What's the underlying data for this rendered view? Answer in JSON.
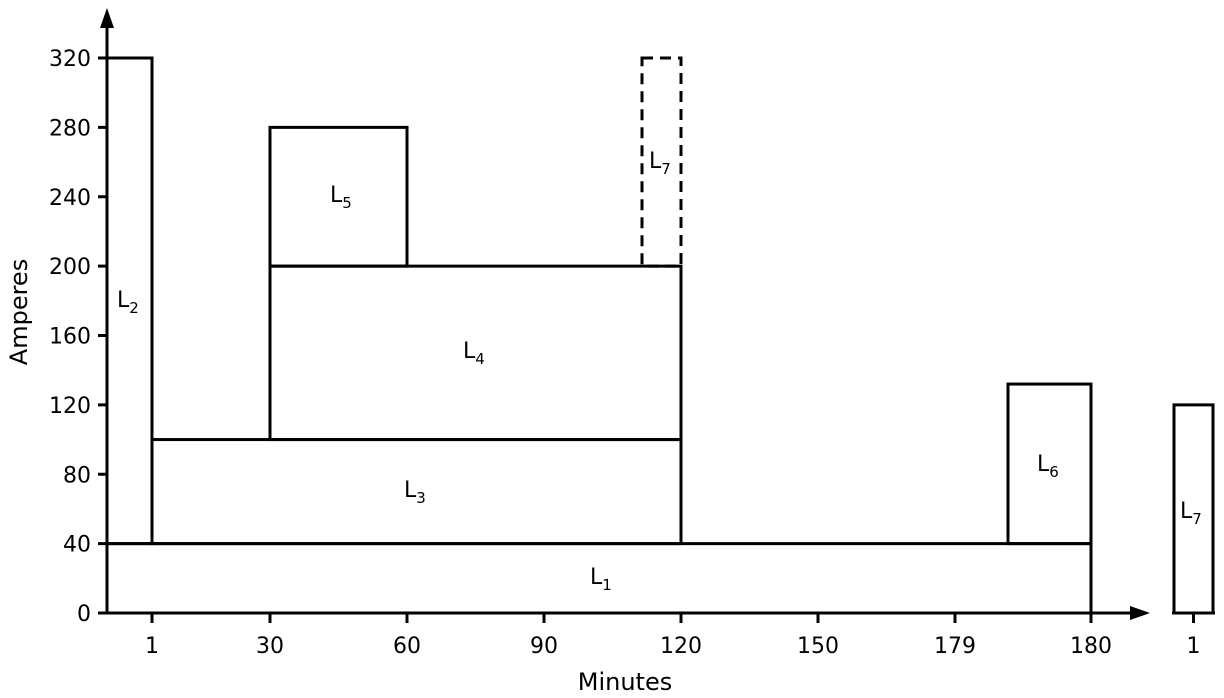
{
  "chart_data": {
    "type": "bar",
    "title": "",
    "xlabel": "Minutes",
    "ylabel": "Amperes",
    "ylim": [
      0,
      320
    ],
    "y_ticks": [
      "0",
      "40",
      "80",
      "120",
      "160",
      "200",
      "240",
      "280",
      "320"
    ],
    "x_ticks": [
      "1",
      "30",
      "60",
      "90",
      "120",
      "150",
      "179",
      "180"
    ],
    "extra_x_tick": "1",
    "grid": false,
    "boxes": [
      {
        "name": "L1",
        "label_main": "L",
        "label_sub": "1",
        "x_start": 0,
        "x_end": 180,
        "y_bottom": 0,
        "y_top": 40,
        "style": "solid",
        "segment": "main"
      },
      {
        "name": "L2",
        "label_main": "L",
        "label_sub": "2",
        "x_start": 0,
        "x_end": 1,
        "y_bottom": 40,
        "y_top": 320,
        "style": "solid",
        "segment": "main"
      },
      {
        "name": "L3",
        "label_main": "L",
        "label_sub": "3",
        "x_start": 1,
        "x_end": 120,
        "y_bottom": 40,
        "y_top": 100,
        "style": "solid",
        "segment": "main"
      },
      {
        "name": "L4",
        "label_main": "L",
        "label_sub": "4",
        "x_start": 30,
        "x_end": 120,
        "y_bottom": 100,
        "y_top": 200,
        "style": "solid",
        "segment": "main"
      },
      {
        "name": "L5",
        "label_main": "L",
        "label_sub": "5",
        "x_start": 30,
        "x_end": 60,
        "y_bottom": 200,
        "y_top": 280,
        "style": "solid",
        "segment": "main"
      },
      {
        "name": "L6",
        "label_main": "L",
        "label_sub": "6",
        "x_start": 179,
        "x_end": 180,
        "y_bottom": 40,
        "y_top": 132,
        "style": "solid",
        "segment": "main"
      },
      {
        "name": "L7-random",
        "label_main": "L",
        "label_sub": "7",
        "x_start": 111,
        "x_end": 120,
        "y_bottom": 200,
        "y_top": 320,
        "style": "dashed",
        "segment": "main"
      },
      {
        "name": "L7-final",
        "label_main": "L",
        "label_sub": "7",
        "x_start": 0,
        "x_end": 1,
        "y_bottom": 0,
        "y_top": 120,
        "style": "solid",
        "segment": "final"
      }
    ]
  }
}
